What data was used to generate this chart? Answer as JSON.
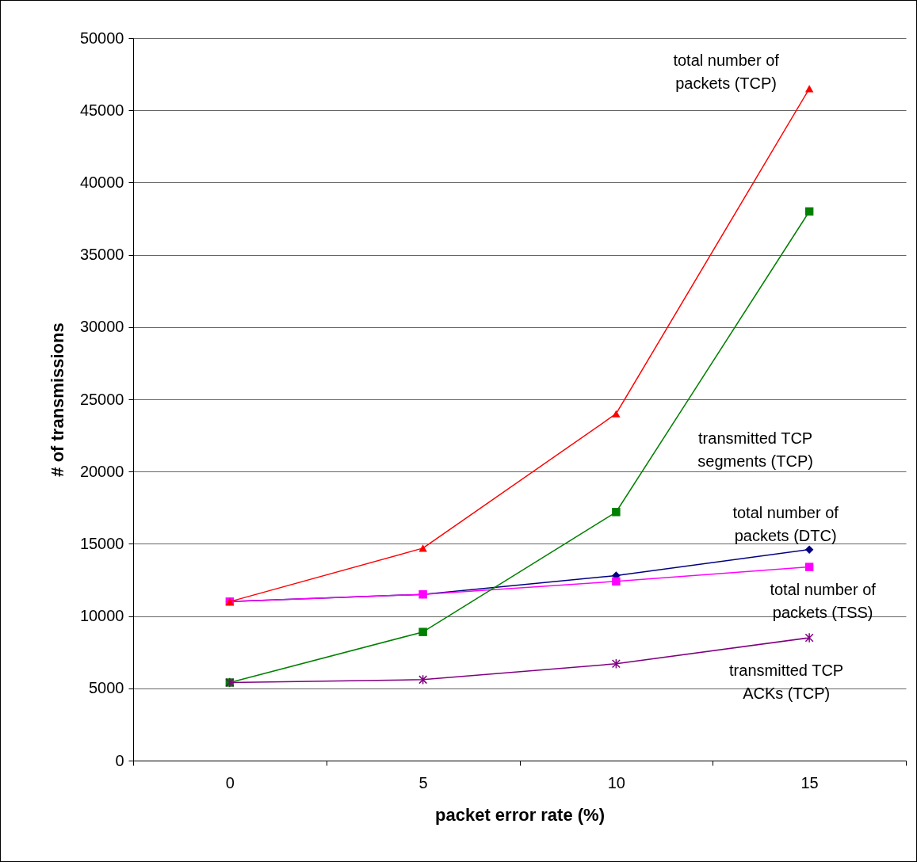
{
  "chart_data": {
    "type": "line",
    "xlabel": "packet error rate (%)",
    "ylabel": "# of transmissions",
    "categories": [
      "0",
      "5",
      "10",
      "15"
    ],
    "ylim": [
      0,
      50000
    ],
    "yticks": [
      0,
      5000,
      10000,
      15000,
      20000,
      25000,
      30000,
      35000,
      40000,
      45000,
      50000
    ],
    "grid": "y",
    "legend": false,
    "line_style": "solid",
    "series": [
      {
        "name": "total number of packets (DTC)",
        "color": "#000080",
        "marker": "diamond",
        "values": [
          11000,
          11500,
          12800,
          14600
        ]
      },
      {
        "name": "total number of packets (TSS)",
        "color": "#ff00ff",
        "marker": "square",
        "values": [
          11000,
          11500,
          12400,
          13400
        ]
      },
      {
        "name": "transmitted TCP segments (TCP)",
        "color": "#008000",
        "marker": "square",
        "values": [
          5400,
          8900,
          17200,
          38000
        ]
      },
      {
        "name": "total number of packets (TCP)",
        "color": "#ff0000",
        "marker": "triangle",
        "values": [
          11000,
          14700,
          24000,
          46500
        ]
      },
      {
        "name": "transmitted TCP ACKs (TCP)",
        "color": "#800080",
        "marker": "cross",
        "values": [
          5400,
          5600,
          6700,
          8500
        ]
      }
    ]
  }
}
